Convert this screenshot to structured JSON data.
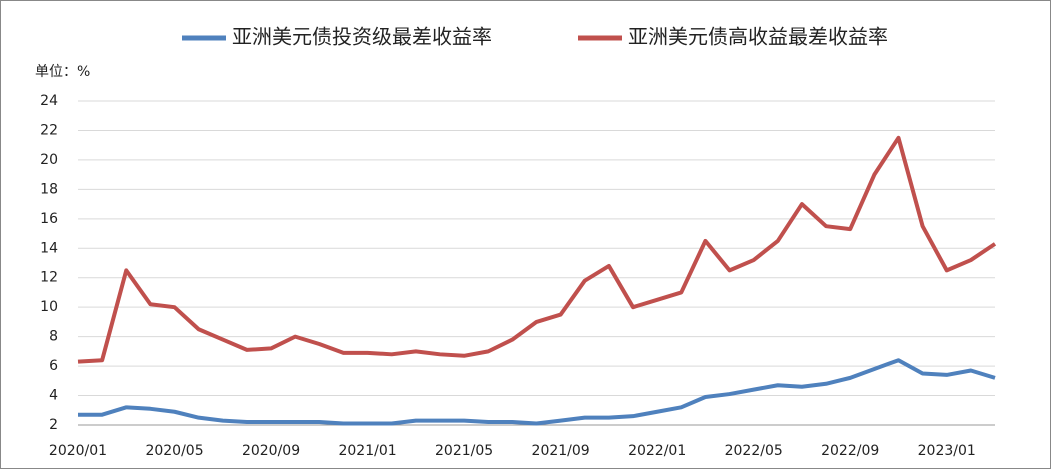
{
  "chart_data": {
    "type": "line",
    "unit_label": "单位：%",
    "x": [
      "2020/01",
      "2020/02",
      "2020/03",
      "2020/04",
      "2020/05",
      "2020/06",
      "2020/07",
      "2020/08",
      "2020/09",
      "2020/10",
      "2020/11",
      "2020/12",
      "2021/01",
      "2021/02",
      "2021/03",
      "2021/04",
      "2021/05",
      "2021/06",
      "2021/07",
      "2021/08",
      "2021/09",
      "2021/10",
      "2021/11",
      "2021/12",
      "2022/01",
      "2022/02",
      "2022/03",
      "2022/04",
      "2022/05",
      "2022/06",
      "2022/07",
      "2022/08",
      "2022/09",
      "2022/10",
      "2022/11",
      "2022/12",
      "2023/01",
      "2023/02",
      "2023/03"
    ],
    "xticks": [
      "2020/01",
      "2020/05",
      "2020/09",
      "2021/01",
      "2021/05",
      "2021/09",
      "2022/01",
      "2022/05",
      "2022/09",
      "2023/01"
    ],
    "series": [
      {
        "name": "亚洲美元债投资级最差收益率",
        "color": "#4f81bd",
        "values": [
          2.7,
          2.7,
          3.2,
          3.1,
          2.9,
          2.5,
          2.3,
          2.2,
          2.2,
          2.2,
          2.2,
          2.1,
          2.1,
          2.1,
          2.3,
          2.3,
          2.3,
          2.2,
          2.2,
          2.1,
          2.3,
          2.5,
          2.5,
          2.6,
          2.9,
          3.2,
          3.9,
          4.1,
          4.4,
          4.7,
          4.6,
          4.8,
          5.2,
          5.8,
          6.4,
          5.5,
          5.4,
          5.7,
          5.2
        ]
      },
      {
        "name": "亚洲美元债高收益最差收益率",
        "color": "#c0504d",
        "values": [
          6.3,
          6.4,
          12.5,
          10.2,
          10.0,
          8.5,
          7.8,
          7.1,
          7.2,
          8.0,
          7.5,
          6.9,
          6.9,
          6.8,
          7.0,
          6.8,
          6.7,
          7.0,
          7.8,
          9.0,
          9.5,
          11.8,
          12.8,
          10.0,
          10.5,
          11.0,
          14.5,
          12.5,
          13.2,
          14.5,
          17.0,
          15.5,
          15.3,
          19.0,
          21.5,
          15.5,
          12.5,
          13.2,
          14.3
        ]
      }
    ],
    "ylim": [
      2,
      24
    ],
    "yticks": [
      2,
      4,
      6,
      8,
      10,
      12,
      14,
      16,
      18,
      20,
      22,
      24
    ],
    "grid": true,
    "legend": "top"
  }
}
